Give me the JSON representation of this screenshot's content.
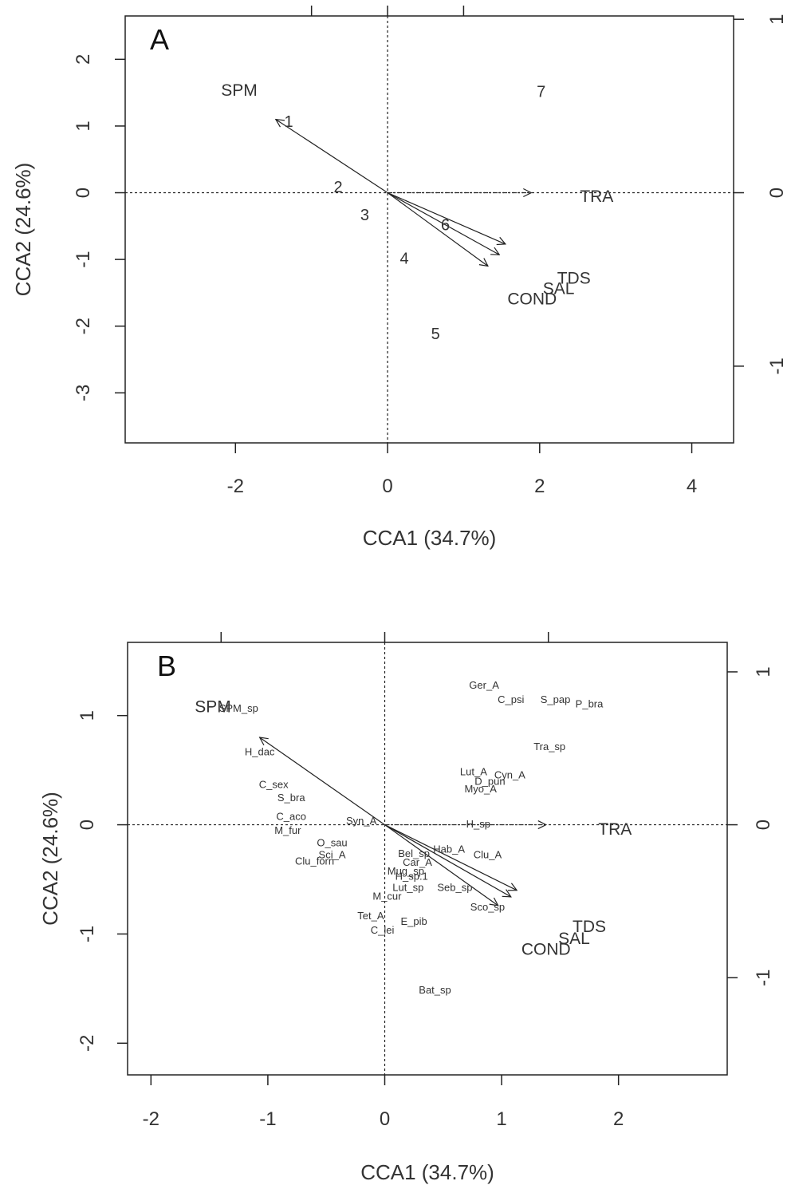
{
  "chart_data": [
    {
      "type": "scatter",
      "panel_label": "A",
      "xlabel": "CCA1 (34.7%)",
      "ylabel": "CCA2 (24.6%)",
      "xlim": [
        -3.45,
        4.55
      ],
      "ylim": [
        -3.75,
        2.65
      ],
      "x_ticks": [
        -2,
        0,
        2,
        4
      ],
      "y_ticks": [
        2,
        1,
        0,
        -1,
        -2,
        -3
      ],
      "top_ticks": [
        -1,
        0,
        1
      ],
      "right_ticks": [
        1,
        0,
        -1
      ],
      "secondary_axes": {
        "tick_labels": [
          "-1",
          "0",
          "1"
        ]
      },
      "reference_lines": {
        "x": 0,
        "y": 0,
        "style": "dotted"
      },
      "sites": [
        {
          "label": "1",
          "x": -1.3,
          "y": 1.05
        },
        {
          "label": "2",
          "x": -0.65,
          "y": 0.07
        },
        {
          "label": "3",
          "x": -0.3,
          "y": -0.35
        },
        {
          "label": "4",
          "x": 0.22,
          "y": -1.0
        },
        {
          "label": "5",
          "x": 0.63,
          "y": -2.13
        },
        {
          "label": "6",
          "x": 0.76,
          "y": -0.5
        },
        {
          "label": "7",
          "x": 2.02,
          "y": 1.5
        }
      ],
      "env_vectors": [
        {
          "label": "SPM",
          "x": -1.47,
          "y": 1.1,
          "label_x": -1.95,
          "label_y": 1.52,
          "dashed": false
        },
        {
          "label": "TRA",
          "x": 1.89,
          "y": 0.0,
          "label_x": 2.75,
          "label_y": -0.07,
          "dashed": true
        },
        {
          "label": "TDS",
          "x": 1.55,
          "y": -0.77,
          "label_x": 2.45,
          "label_y": -1.3,
          "dashed": false
        },
        {
          "label": "SAL",
          "x": 1.47,
          "y": -0.93,
          "label_x": 2.25,
          "label_y": -1.45,
          "dashed": false
        },
        {
          "label": "COND",
          "x": 1.32,
          "y": -1.1,
          "label_x": 1.9,
          "label_y": -1.61,
          "dashed": false
        }
      ]
    },
    {
      "type": "scatter",
      "panel_label": "B",
      "xlabel": "CCA1 (34.7%)",
      "ylabel": "CCA2 (24.6%)",
      "xlim": [
        -2.2,
        2.93
      ],
      "ylim": [
        -2.29,
        1.67
      ],
      "x_ticks": [
        -2,
        -1,
        0,
        1,
        2
      ],
      "y_ticks": [
        1,
        0,
        -1,
        -2
      ],
      "top_ticks": [
        -1,
        0,
        1
      ],
      "right_ticks": [
        1,
        0,
        -1
      ],
      "secondary_axes": {
        "tick_labels": [
          "-1",
          "0",
          "1"
        ]
      },
      "reference_lines": {
        "x": 0,
        "y": 0,
        "style": "dotted"
      },
      "species": [
        {
          "label": "Ger_A",
          "x": 0.85,
          "y": 1.27
        },
        {
          "label": "C_psi",
          "x": 1.08,
          "y": 1.14
        },
        {
          "label": "S_pap",
          "x": 1.46,
          "y": 1.14
        },
        {
          "label": "P_bra",
          "x": 1.75,
          "y": 1.1
        },
        {
          "label": "Tra_sp",
          "x": 1.41,
          "y": 0.71
        },
        {
          "label": "Lut_A",
          "x": 0.76,
          "y": 0.48
        },
        {
          "label": "Cyn_A",
          "x": 1.07,
          "y": 0.45
        },
        {
          "label": "D_pun",
          "x": 0.9,
          "y": 0.39
        },
        {
          "label": "Myo_A",
          "x": 0.82,
          "y": 0.32
        },
        {
          "label": "H_dac",
          "x": -1.07,
          "y": 0.66
        },
        {
          "label": "C_sex",
          "x": -0.95,
          "y": 0.36
        },
        {
          "label": "S_bra",
          "x": -0.8,
          "y": 0.24
        },
        {
          "label": "C_aco",
          "x": -0.8,
          "y": 0.07
        },
        {
          "label": "M_fur",
          "x": -0.83,
          "y": -0.06
        },
        {
          "label": "O_sau",
          "x": -0.45,
          "y": -0.17
        },
        {
          "label": "Syn_A",
          "x": -0.2,
          "y": 0.03
        },
        {
          "label": "Sci_A",
          "x": -0.45,
          "y": -0.28
        },
        {
          "label": "Clu_forn",
          "x": -0.6,
          "y": -0.34
        },
        {
          "label": "Bel_sp",
          "x": 0.25,
          "y": -0.27
        },
        {
          "label": "Hab_A",
          "x": 0.55,
          "y": -0.23
        },
        {
          "label": "Clu_A",
          "x": 0.88,
          "y": -0.28
        },
        {
          "label": "Car_A",
          "x": 0.28,
          "y": -0.35
        },
        {
          "label": "Mug_sp",
          "x": 0.18,
          "y": -0.43
        },
        {
          "label": "H_sp.1",
          "x": 0.23,
          "y": -0.48
        },
        {
          "label": "Lut_sp",
          "x": 0.2,
          "y": -0.58
        },
        {
          "label": "Seb_sp",
          "x": 0.6,
          "y": -0.58
        },
        {
          "label": "M_cur",
          "x": 0.02,
          "y": -0.66
        },
        {
          "label": "Sco_sp",
          "x": 0.88,
          "y": -0.76
        },
        {
          "label": "Tet_A",
          "x": -0.12,
          "y": -0.84
        },
        {
          "label": "E_pib",
          "x": 0.25,
          "y": -0.89
        },
        {
          "label": "C_lei",
          "x": -0.02,
          "y": -0.97
        },
        {
          "label": "Bat_sp",
          "x": 0.43,
          "y": -1.52
        },
        {
          "label": "H_sp",
          "x": 0.8,
          "y": 0.0
        },
        {
          "label": "SPM_sp",
          "x": -1.25,
          "y": 1.06
        }
      ],
      "env_vectors": [
        {
          "label": "SPM",
          "x": -1.07,
          "y": 0.8,
          "label_x": -1.47,
          "label_y": 1.07,
          "dashed": false
        },
        {
          "label": "TRA",
          "x": 1.38,
          "y": 0.0,
          "label_x": 1.97,
          "label_y": -0.05,
          "dashed": true
        },
        {
          "label": "TDS",
          "x": 1.13,
          "y": -0.6,
          "label_x": 1.75,
          "label_y": -0.94,
          "dashed": false
        },
        {
          "label": "SAL",
          "x": 1.08,
          "y": -0.66,
          "label_x": 1.62,
          "label_y": -1.05,
          "dashed": false
        },
        {
          "label": "COND",
          "x": 0.97,
          "y": -0.74,
          "label_x": 1.38,
          "label_y": -1.15,
          "dashed": false
        }
      ]
    }
  ]
}
